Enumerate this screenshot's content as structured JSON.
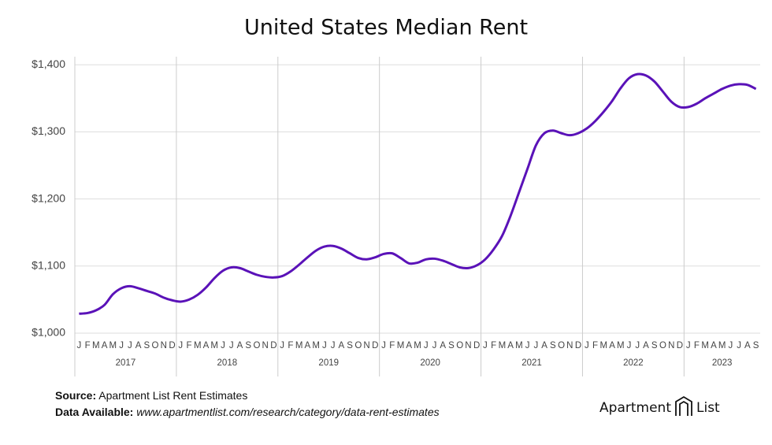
{
  "chart_data": {
    "type": "line",
    "title": "United States Median Rent",
    "categories": [
      "J",
      "F",
      "M",
      "A",
      "M",
      "J",
      "J",
      "A",
      "S",
      "O",
      "N",
      "D",
      "J",
      "F",
      "M",
      "A",
      "M",
      "J",
      "J",
      "A",
      "S",
      "O",
      "N",
      "D",
      "J",
      "F",
      "M",
      "A",
      "M",
      "J",
      "J",
      "A",
      "S",
      "O",
      "N",
      "D",
      "J",
      "F",
      "M",
      "A",
      "M",
      "J",
      "J",
      "A",
      "S",
      "O",
      "N",
      "D",
      "J",
      "F",
      "M",
      "A",
      "M",
      "J",
      "J",
      "A",
      "S",
      "O",
      "N",
      "D",
      "J",
      "F",
      "M",
      "A",
      "M",
      "J",
      "J",
      "A",
      "S",
      "O",
      "N",
      "D",
      "J",
      "F",
      "M",
      "A",
      "M",
      "J",
      "J",
      "A",
      "S"
    ],
    "years": [
      "2017",
      "2018",
      "2019",
      "2020",
      "2021",
      "2022",
      "2023"
    ],
    "series": [
      {
        "name": "Median Rent",
        "color": "#5a12b8",
        "values": [
          1029,
          1030,
          1034,
          1042,
          1058,
          1067,
          1070,
          1067,
          1063,
          1059,
          1053,
          1049,
          1047,
          1050,
          1057,
          1068,
          1082,
          1093,
          1098,
          1097,
          1092,
          1087,
          1084,
          1083,
          1085,
          1092,
          1102,
          1113,
          1123,
          1129,
          1130,
          1126,
          1119,
          1112,
          1110,
          1113,
          1118,
          1119,
          1112,
          1104,
          1105,
          1110,
          1111,
          1108,
          1103,
          1098,
          1097,
          1101,
          1110,
          1125,
          1145,
          1175,
          1210,
          1245,
          1280,
          1298,
          1302,
          1298,
          1295,
          1298,
          1305,
          1316,
          1330,
          1346,
          1365,
          1380,
          1386,
          1384,
          1375,
          1360,
          1345,
          1337,
          1337,
          1342,
          1350,
          1357,
          1364,
          1369,
          1371,
          1370,
          1364
        ]
      }
    ],
    "ylim": [
      1000,
      1412
    ],
    "yticks": [
      {
        "value": 1000,
        "label": "$1,000"
      },
      {
        "value": 1100,
        "label": "$1,100"
      },
      {
        "value": 1200,
        "label": "$1,200"
      },
      {
        "value": 1300,
        "label": "$1,300"
      },
      {
        "value": 1400,
        "label": "$1,400"
      }
    ],
    "grid": true
  },
  "footer": {
    "source_label": "Source:",
    "source": "Apartment List Rent Estimates",
    "data_label": "Data Available:",
    "data_url": "www.apartmentlist.com/research/category/data-rent-estimates",
    "logo_left": "Apartment",
    "logo_right": "List"
  }
}
